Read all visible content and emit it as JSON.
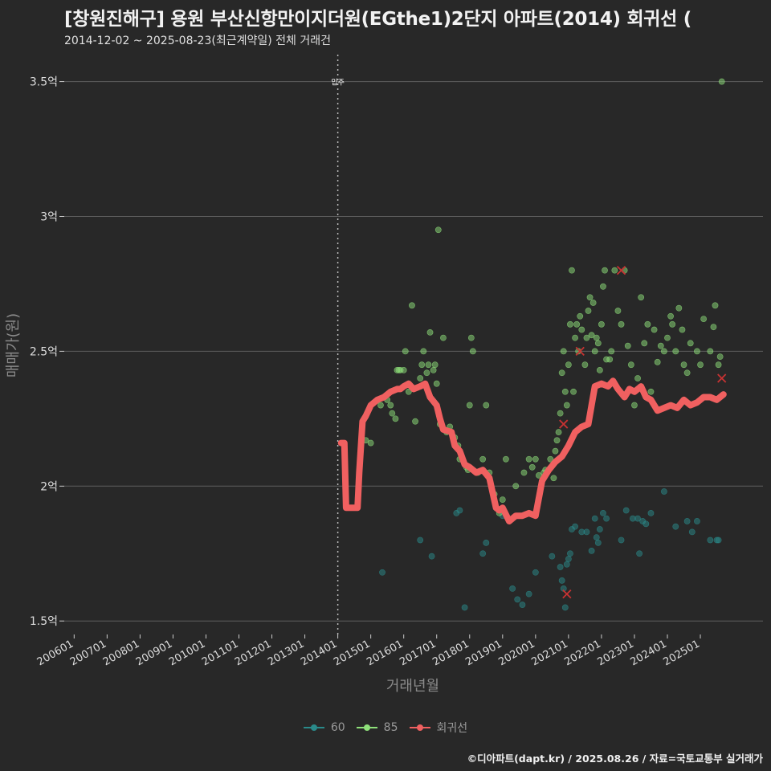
{
  "title": "[창원진해구] 용원 부산신항만이지더원(EGthe1)2단지 아파트(2014) 회귀선 (",
  "subtitle": "2014-12-02 ~ 2025-08-23(최근계약일) 전체 거래건",
  "caption": "©디아파트(dapt.kr) / 2025.08.26 / 자료=국토교통부 실거래가",
  "colors": {
    "background": "#282828",
    "grid": "#5e5e5e",
    "s60": "#2a8a8a",
    "s85": "#8ee07a",
    "regression": "#f06060",
    "cancel": "#c83232"
  },
  "chart_data": {
    "type": "scatter",
    "title": "[창원진해구] 용원 부산신항만이지더원(EGthe1)2단지 아파트(2014) 회귀선 (",
    "xlabel": "거래년월",
    "ylabel": "매매가(원)",
    "xlim": [
      2005.7,
      2026.9
    ],
    "ylim": [
      1.45,
      3.6
    ],
    "yticks": [
      1.5,
      2,
      2.5,
      3,
      3.5
    ],
    "ytick_labels": [
      "1.5억",
      "2억",
      "2.5억",
      "3억",
      "3.5억"
    ],
    "xticks": [
      2006,
      2007,
      2008,
      2009,
      2010,
      2011,
      2012,
      2013,
      2014,
      2015,
      2016,
      2017,
      2018,
      2019,
      2020,
      2021,
      2022,
      2023,
      2024,
      2025
    ],
    "xtick_labels": [
      "200601",
      "200701",
      "200801",
      "200901",
      "201001",
      "201101",
      "201201",
      "201301",
      "201401",
      "201501",
      "201601",
      "201701",
      "201801",
      "201901",
      "202001",
      "202101",
      "202201",
      "202301",
      "202401",
      "202501"
    ],
    "vline": {
      "x": 2014.0,
      "label": "입주"
    },
    "legend": [
      {
        "name": "60",
        "type": "point-line"
      },
      {
        "name": "85",
        "type": "point-line"
      },
      {
        "name": "회귀선",
        "type": "line"
      }
    ],
    "series": [
      {
        "name": "60",
        "points": [
          [
            2015.35,
            1.68
          ],
          [
            2016.5,
            1.8
          ],
          [
            2016.85,
            1.74
          ],
          [
            2017.6,
            1.9
          ],
          [
            2017.7,
            1.91
          ],
          [
            2017.85,
            1.55
          ],
          [
            2018.4,
            1.75
          ],
          [
            2018.5,
            1.79
          ],
          [
            2019.0,
            1.89
          ],
          [
            2019.3,
            1.62
          ],
          [
            2019.45,
            1.58
          ],
          [
            2019.6,
            1.56
          ],
          [
            2019.8,
            1.6
          ],
          [
            2020.0,
            1.68
          ],
          [
            2020.5,
            1.74
          ],
          [
            2020.75,
            1.7
          ],
          [
            2020.8,
            1.65
          ],
          [
            2020.85,
            1.62
          ],
          [
            2020.9,
            1.55
          ],
          [
            2020.95,
            1.71
          ],
          [
            2021.0,
            1.73
          ],
          [
            2021.05,
            1.75
          ],
          [
            2021.1,
            1.84
          ],
          [
            2021.2,
            1.85
          ],
          [
            2021.4,
            1.83
          ],
          [
            2021.55,
            1.83
          ],
          [
            2021.7,
            1.76
          ],
          [
            2021.8,
            1.88
          ],
          [
            2021.85,
            1.81
          ],
          [
            2021.9,
            1.79
          ],
          [
            2021.95,
            1.84
          ],
          [
            2022.05,
            1.9
          ],
          [
            2022.15,
            1.88
          ],
          [
            2022.6,
            1.8
          ],
          [
            2022.75,
            1.91
          ],
          [
            2022.95,
            1.88
          ],
          [
            2023.1,
            1.88
          ],
          [
            2023.15,
            1.75
          ],
          [
            2023.25,
            1.87
          ],
          [
            2023.35,
            1.86
          ],
          [
            2023.5,
            1.9
          ],
          [
            2023.9,
            1.98
          ],
          [
            2024.25,
            1.85
          ],
          [
            2024.6,
            1.87
          ],
          [
            2024.75,
            1.83
          ],
          [
            2024.9,
            1.87
          ],
          [
            2025.3,
            1.8
          ],
          [
            2025.5,
            1.8
          ],
          [
            2025.55,
            1.8
          ]
        ]
      },
      {
        "name": "85",
        "points": [
          [
            2014.85,
            2.17
          ],
          [
            2015.0,
            2.16
          ],
          [
            2015.3,
            2.3
          ],
          [
            2015.5,
            2.32
          ],
          [
            2015.6,
            2.3
          ],
          [
            2015.65,
            2.27
          ],
          [
            2015.75,
            2.25
          ],
          [
            2015.8,
            2.43
          ],
          [
            2015.85,
            2.43
          ],
          [
            2015.9,
            2.43
          ],
          [
            2016.0,
            2.43
          ],
          [
            2016.05,
            2.5
          ],
          [
            2016.15,
            2.35
          ],
          [
            2016.25,
            2.67
          ],
          [
            2016.35,
            2.24
          ],
          [
            2016.5,
            2.4
          ],
          [
            2016.55,
            2.45
          ],
          [
            2016.6,
            2.5
          ],
          [
            2016.7,
            2.42
          ],
          [
            2016.75,
            2.45
          ],
          [
            2016.8,
            2.57
          ],
          [
            2016.9,
            2.43
          ],
          [
            2016.95,
            2.45
          ],
          [
            2017.0,
            2.38
          ],
          [
            2017.05,
            2.95
          ],
          [
            2017.1,
            2.23
          ],
          [
            2017.2,
            2.55
          ],
          [
            2017.3,
            2.2
          ],
          [
            2017.4,
            2.22
          ],
          [
            2017.55,
            2.18
          ],
          [
            2017.65,
            2.15
          ],
          [
            2017.7,
            2.1
          ],
          [
            2017.9,
            2.07
          ],
          [
            2017.95,
            2.06
          ],
          [
            2018.0,
            2.3
          ],
          [
            2018.05,
            2.55
          ],
          [
            2018.1,
            2.5
          ],
          [
            2018.25,
            2.05
          ],
          [
            2018.4,
            2.1
          ],
          [
            2018.5,
            2.3
          ],
          [
            2018.6,
            2.05
          ],
          [
            2018.75,
            1.97
          ],
          [
            2018.9,
            1.9
          ],
          [
            2019.0,
            1.95
          ],
          [
            2019.1,
            2.1
          ],
          [
            2019.4,
            2.0
          ],
          [
            2019.65,
            2.05
          ],
          [
            2019.8,
            2.1
          ],
          [
            2019.9,
            2.07
          ],
          [
            2020.0,
            2.1
          ],
          [
            2020.1,
            2.04
          ],
          [
            2020.25,
            2.05
          ],
          [
            2020.3,
            2.06
          ],
          [
            2020.45,
            2.1
          ],
          [
            2020.55,
            2.03
          ],
          [
            2020.6,
            2.13
          ],
          [
            2020.65,
            2.17
          ],
          [
            2020.7,
            2.2
          ],
          [
            2020.75,
            2.27
          ],
          [
            2020.8,
            2.42
          ],
          [
            2020.85,
            2.5
          ],
          [
            2020.9,
            2.35
          ],
          [
            2020.95,
            2.3
          ],
          [
            2021.0,
            2.45
          ],
          [
            2021.05,
            2.6
          ],
          [
            2021.1,
            2.8
          ],
          [
            2021.15,
            2.35
          ],
          [
            2021.2,
            2.55
          ],
          [
            2021.25,
            2.6
          ],
          [
            2021.3,
            2.5
          ],
          [
            2021.35,
            2.63
          ],
          [
            2021.4,
            2.58
          ],
          [
            2021.5,
            2.45
          ],
          [
            2021.55,
            2.55
          ],
          [
            2021.6,
            2.65
          ],
          [
            2021.65,
            2.7
          ],
          [
            2021.7,
            2.56
          ],
          [
            2021.75,
            2.68
          ],
          [
            2021.8,
            2.5
          ],
          [
            2021.85,
            2.55
          ],
          [
            2021.9,
            2.53
          ],
          [
            2021.95,
            2.43
          ],
          [
            2022.0,
            2.6
          ],
          [
            2022.05,
            2.74
          ],
          [
            2022.1,
            2.8
          ],
          [
            2022.15,
            2.47
          ],
          [
            2022.25,
            2.47
          ],
          [
            2022.3,
            2.5
          ],
          [
            2022.4,
            2.8
          ],
          [
            2022.5,
            2.65
          ],
          [
            2022.6,
            2.6
          ],
          [
            2022.7,
            2.8
          ],
          [
            2022.8,
            2.52
          ],
          [
            2022.9,
            2.45
          ],
          [
            2023.0,
            2.3
          ],
          [
            2023.1,
            2.4
          ],
          [
            2023.2,
            2.7
          ],
          [
            2023.3,
            2.53
          ],
          [
            2023.4,
            2.6
          ],
          [
            2023.5,
            2.35
          ],
          [
            2023.6,
            2.58
          ],
          [
            2023.7,
            2.46
          ],
          [
            2023.8,
            2.52
          ],
          [
            2023.9,
            2.5
          ],
          [
            2024.0,
            2.55
          ],
          [
            2024.1,
            2.63
          ],
          [
            2024.15,
            2.6
          ],
          [
            2024.25,
            2.5
          ],
          [
            2024.35,
            2.66
          ],
          [
            2024.45,
            2.58
          ],
          [
            2024.5,
            2.45
          ],
          [
            2024.6,
            2.42
          ],
          [
            2024.7,
            2.53
          ],
          [
            2024.9,
            2.5
          ],
          [
            2025.0,
            2.45
          ],
          [
            2025.1,
            2.62
          ],
          [
            2025.3,
            2.5
          ],
          [
            2025.4,
            2.59
          ],
          [
            2025.45,
            2.67
          ],
          [
            2025.55,
            2.45
          ],
          [
            2025.6,
            2.48
          ],
          [
            2025.65,
            3.5
          ]
        ]
      }
    ],
    "regression": {
      "name": "회귀선",
      "x": [
        2014.1,
        2014.2,
        2014.25,
        2014.4,
        2014.5,
        2014.6,
        2014.65,
        2014.75,
        2014.85,
        2015.0,
        2015.2,
        2015.4,
        2015.6,
        2015.8,
        2015.9,
        2016.0,
        2016.15,
        2016.3,
        2016.5,
        2016.65,
        2016.8,
        2017.0,
        2017.1,
        2017.2,
        2017.45,
        2017.55,
        2017.7,
        2017.85,
        2018.0,
        2018.2,
        2018.4,
        2018.6,
        2018.8,
        2018.9,
        2019.0,
        2019.2,
        2019.4,
        2019.6,
        2019.8,
        2020.0,
        2020.2,
        2020.4,
        2020.6,
        2020.8,
        2021.0,
        2021.2,
        2021.4,
        2021.6,
        2021.8,
        2022.0,
        2022.2,
        2022.35,
        2022.5,
        2022.7,
        2022.85,
        2023.0,
        2023.2,
        2023.35,
        2023.5,
        2023.7,
        2023.9,
        2024.1,
        2024.3,
        2024.5,
        2024.7,
        2024.9,
        2025.1,
        2025.3,
        2025.5,
        2025.7
      ],
      "y": [
        2.16,
        2.16,
        1.92,
        1.92,
        1.92,
        1.92,
        2.05,
        2.24,
        2.26,
        2.3,
        2.32,
        2.33,
        2.35,
        2.36,
        2.36,
        2.37,
        2.38,
        2.36,
        2.37,
        2.38,
        2.33,
        2.3,
        2.25,
        2.21,
        2.2,
        2.15,
        2.13,
        2.08,
        2.07,
        2.05,
        2.06,
        2.03,
        1.92,
        1.91,
        1.92,
        1.87,
        1.89,
        1.89,
        1.9,
        1.89,
        2.02,
        2.06,
        2.09,
        2.11,
        2.15,
        2.2,
        2.22,
        2.23,
        2.37,
        2.38,
        2.37,
        2.39,
        2.36,
        2.33,
        2.36,
        2.35,
        2.37,
        2.33,
        2.32,
        2.28,
        2.29,
        2.3,
        2.29,
        2.32,
        2.3,
        2.31,
        2.33,
        2.33,
        2.32,
        2.34
      ]
    },
    "cancelled": [
      [
        2020.85,
        2.23
      ],
      [
        2020.95,
        1.6
      ],
      [
        2021.35,
        2.5
      ],
      [
        2022.6,
        2.8
      ],
      [
        2025.65,
        2.4
      ]
    ]
  }
}
